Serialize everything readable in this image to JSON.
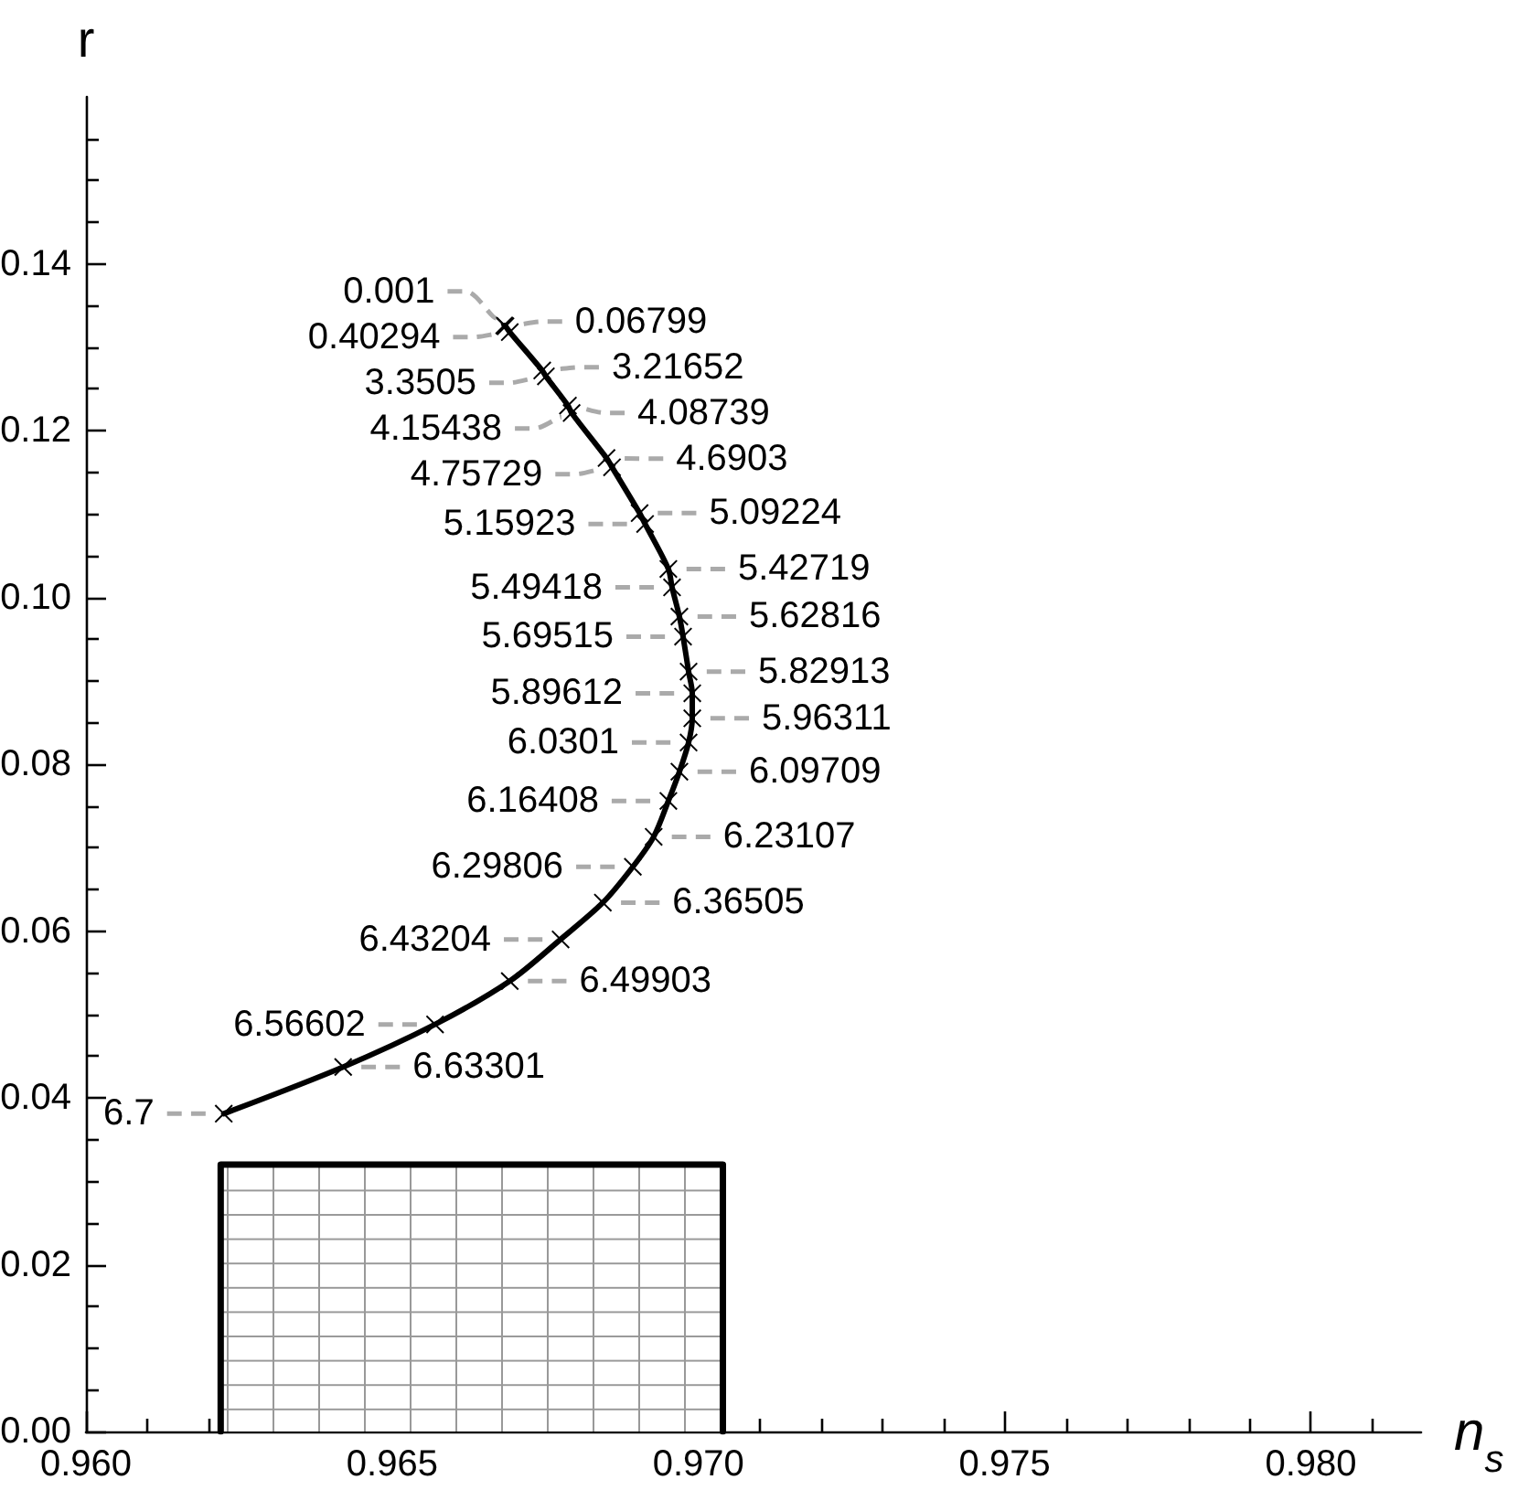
{
  "chart_data": {
    "type": "line",
    "xlabel": "n$_{s}$",
    "ylabel": "r",
    "xlim": [
      0.96,
      0.9818
    ],
    "xticks": [
      {
        "value": 0.96,
        "label": "0.960"
      },
      {
        "value": 0.961,
        "label": null
      },
      {
        "value": 0.962,
        "label": null
      },
      {
        "value": 0.963,
        "label": null
      },
      {
        "value": 0.964,
        "label": null
      },
      0.965,
      {
        "value": 0.966,
        "label": null
      },
      {
        "value": 0.967,
        "label": null
      },
      {
        "value": 0.968,
        "label": null
      },
      {
        "value": 0.969,
        "label": null
      },
      {
        "value": 0.97,
        "label": "0.970"
      },
      {
        "value": 0.971,
        "label": null
      },
      {
        "value": 0.972,
        "label": null
      },
      {
        "value": 0.973,
        "label": null
      },
      {
        "value": 0.974,
        "label": null
      },
      0.975,
      {
        "value": 0.976,
        "label": null
      },
      {
        "value": 0.977,
        "label": null
      },
      {
        "value": 0.978,
        "label": null
      },
      {
        "value": 0.979,
        "label": null
      },
      {
        "value": 0.98,
        "label": "0.980"
      },
      {
        "value": 0.981,
        "label": null
      }
    ],
    "ylim": [
      0,
      0.16
    ],
    "yticks": [
      {
        "value": 0,
        "label": "0.00"
      },
      {
        "value": 0.005,
        "label": null
      },
      {
        "value": 0.01,
        "label": null
      },
      {
        "value": 0.015,
        "label": null
      },
      0.02,
      {
        "value": 0.025,
        "label": null
      },
      {
        "value": 0.03,
        "label": null
      },
      {
        "value": 0.035,
        "label": null
      },
      0.04,
      {
        "value": 0.045,
        "label": null
      },
      {
        "value": 0.05,
        "label": null
      },
      {
        "value": 0.055,
        "label": null
      },
      0.06,
      {
        "value": 0.065,
        "label": null
      },
      {
        "value": 0.07,
        "label": null
      },
      {
        "value": 0.075,
        "label": null
      },
      0.08,
      {
        "value": 0.085,
        "label": null
      },
      {
        "value": 0.09,
        "label": null
      },
      {
        "value": 0.095,
        "label": null
      },
      {
        "value": 0.1,
        "label": "0.10"
      },
      {
        "value": 0.105,
        "label": null
      },
      {
        "value": 0.11,
        "label": null
      },
      {
        "value": 0.115,
        "label": null
      },
      0.12,
      {
        "value": 0.125,
        "label": null
      },
      {
        "value": 0.13,
        "label": null
      },
      {
        "value": 0.135,
        "label": null
      },
      0.14,
      {
        "value": 0.145,
        "label": null
      },
      {
        "value": 0.15,
        "label": null
      },
      {
        "value": 0.155,
        "label": null
      }
    ],
    "marker": "cross",
    "line_style": "solid",
    "series": [
      {
        "color": "#000000",
        "x": [
          0.96683,
          0.96685,
          0.96692,
          0.96745,
          0.96751,
          0.96787,
          0.96793,
          0.9685,
          0.96859,
          0.96904,
          0.96913,
          0.96951,
          0.96957,
          0.96969,
          0.96975,
          0.96984,
          0.9699,
          0.9699,
          0.96984,
          0.96969,
          0.96951,
          0.96927,
          0.96893,
          0.96844,
          0.96775,
          0.96692,
          0.9657,
          0.9642,
          0.96225
        ],
        "values": [
          0.1326,
          0.1325,
          0.1318,
          0.1272,
          0.1265,
          0.123,
          0.1221,
          0.1167,
          0.1156,
          0.1101,
          0.1088,
          0.1034,
          0.1012,
          0.0977,
          0.0953,
          0.0911,
          0.0885,
          0.0855,
          0.0826,
          0.0791,
          0.0756,
          0.0713,
          0.0677,
          0.0634,
          0.059,
          0.054,
          0.0488,
          0.0437,
          0.0381
        ]
      },
      {
        "type": "area",
        "color": "#000000",
        "marker": "none",
        "x": [
          0.9622,
          0.9622,
          0.9704,
          0.9704
        ],
        "values": [
          0,
          0.032,
          0.032,
          0
        ]
      }
    ],
    "annotations": [
      {
        "text": "0.001",
        "x": 0.96683,
        "y": 0.1326
      },
      {
        "text": "0.06799",
        "x": 0.96685,
        "y": 0.1325
      },
      {
        "text": "0.40294",
        "x": 0.96692,
        "y": 0.1318
      },
      {
        "text": "3.21652",
        "x": 0.96745,
        "y": 0.1272
      },
      {
        "text": "3.3505",
        "x": 0.96751,
        "y": 0.1265
      },
      {
        "text": "4.08739",
        "x": 0.96787,
        "y": 0.123
      },
      {
        "text": "4.15438",
        "x": 0.96793,
        "y": 0.1221
      },
      {
        "text": "4.6903",
        "x": 0.9685,
        "y": 0.1167
      },
      {
        "text": "4.75729",
        "x": 0.96859,
        "y": 0.1156
      },
      {
        "text": "5.09224",
        "x": 0.96904,
        "y": 0.1101
      },
      {
        "text": "5.15923",
        "x": 0.96913,
        "y": 0.1088
      },
      {
        "text": "5.42719",
        "x": 0.96951,
        "y": 0.1034
      },
      {
        "text": "5.49418",
        "x": 0.96957,
        "y": 0.1012
      },
      {
        "text": "5.62816",
        "x": 0.96969,
        "y": 0.0977
      },
      {
        "text": "5.69515",
        "x": 0.96975,
        "y": 0.0953
      },
      {
        "text": "5.82913",
        "x": 0.96984,
        "y": 0.0911
      },
      {
        "text": "5.89612",
        "x": 0.9699,
        "y": 0.0885
      },
      {
        "text": "5.96311",
        "x": 0.9699,
        "y": 0.0855
      },
      {
        "text": "6.0301",
        "x": 0.96984,
        "y": 0.0826
      },
      {
        "text": "6.09709",
        "x": 0.96969,
        "y": 0.0791
      },
      {
        "text": "6.16408",
        "x": 0.96951,
        "y": 0.0756
      },
      {
        "text": "6.23107",
        "x": 0.96927,
        "y": 0.0713
      },
      {
        "text": "6.29806",
        "x": 0.96893,
        "y": 0.0677
      },
      {
        "text": "6.36505",
        "x": 0.96844,
        "y": 0.0634
      },
      {
        "text": "6.43204",
        "x": 0.96775,
        "y": 0.059
      },
      {
        "text": "6.49903",
        "x": 0.96692,
        "y": 0.054
      },
      {
        "text": "6.56602",
        "x": 0.9657,
        "y": 0.0488
      },
      {
        "text": "6.63301",
        "x": 0.9642,
        "y": 0.0437
      },
      {
        "text": "6.7",
        "x": 0.96225,
        "y": 0.0381
      }
    ]
  }
}
